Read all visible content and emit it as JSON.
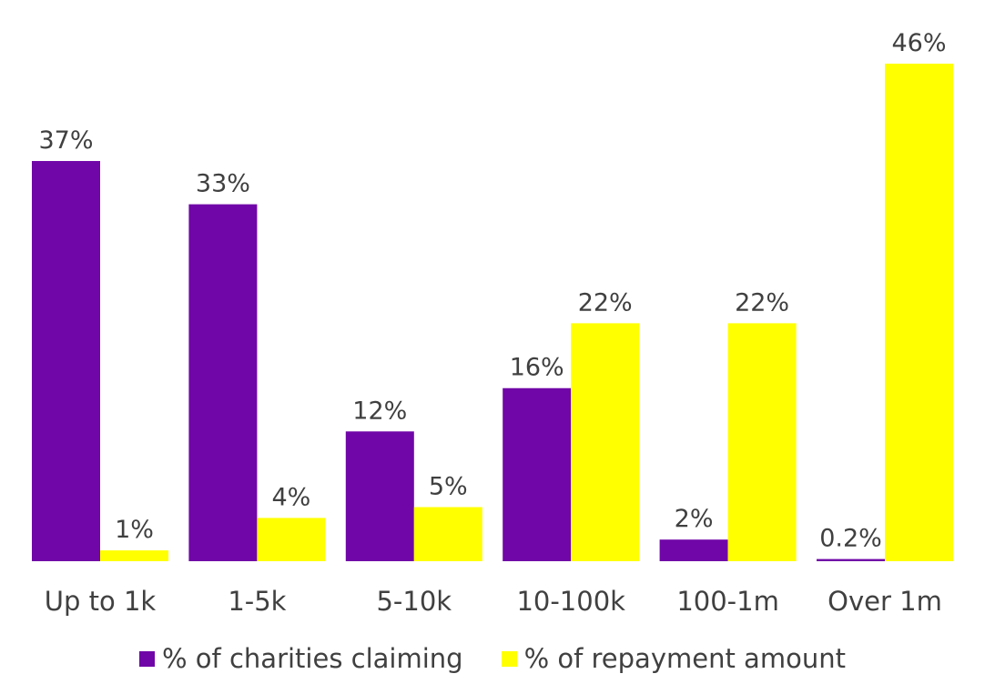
{
  "chart_data": {
    "type": "bar",
    "categories": [
      "Up to 1k",
      "1-5k",
      "5-10k",
      "10-100k",
      "100-1m",
      "Over 1m"
    ],
    "series": [
      {
        "name": "% of charities claiming",
        "values": [
          37,
          33,
          12,
          16,
          2,
          0.2
        ],
        "labels": [
          "37%",
          "33%",
          "12%",
          "16%",
          "2%",
          "0.2%"
        ],
        "color": "#7006A8"
      },
      {
        "name": "% of repayment amount",
        "values": [
          1,
          4,
          5,
          22,
          22,
          46
        ],
        "labels": [
          "1%",
          "4%",
          "5%",
          "22%",
          "22%",
          "46%"
        ],
        "color": "#FFFF00"
      }
    ],
    "title": "",
    "xlabel": "",
    "ylabel": "",
    "ylim": [
      0,
      46
    ],
    "grid": false,
    "legend": "bottom"
  }
}
